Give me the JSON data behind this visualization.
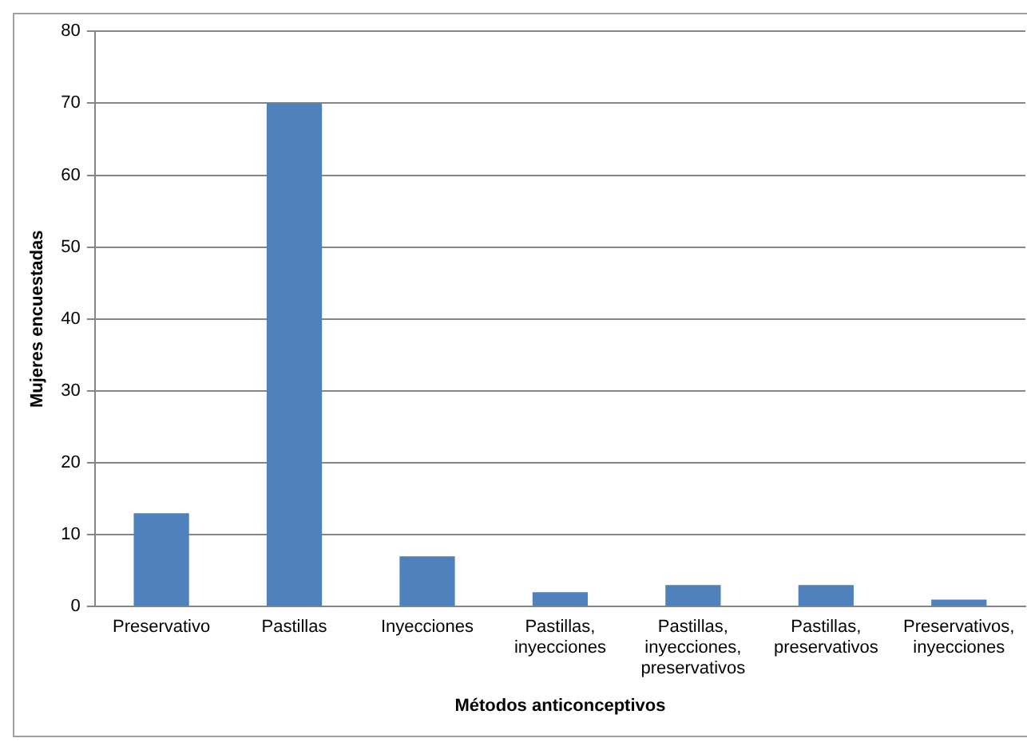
{
  "chart_data": {
    "type": "bar",
    "xlabel": "Métodos anticonceptivos",
    "ylabel": "Mujeres encuestadas",
    "categories": [
      "Preservativo",
      "Pastillas",
      "Inyecciones",
      "Pastillas, inyecciones",
      "Pastillas, inyecciones, preservativos",
      "Pastillas, preservativos",
      "Preservativos, inyecciones"
    ],
    "values": [
      13,
      70,
      7,
      2,
      3,
      3,
      1
    ],
    "color": "#4f81bd",
    "ylim": [
      0,
      80
    ],
    "yticks": [
      0,
      10,
      20,
      30,
      40,
      50,
      60,
      70,
      80
    ],
    "grid": "y",
    "legend": false
  }
}
